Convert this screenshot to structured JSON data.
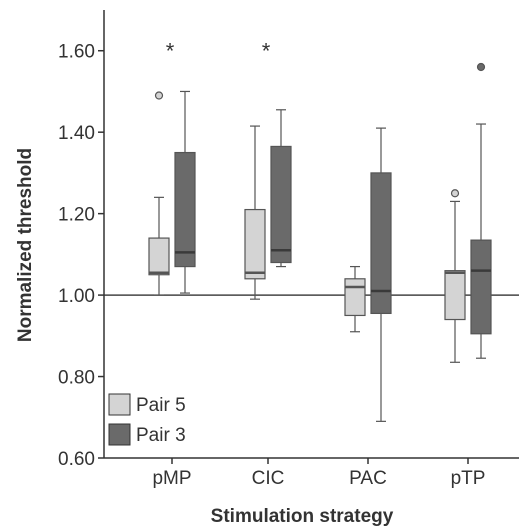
{
  "chart_data": {
    "type": "boxplot",
    "xlabel": "Stimulation strategy",
    "ylabel": "Normalized threshold",
    "ylim": [
      0.6,
      1.7
    ],
    "yticks": [
      "0.60",
      "0.80",
      "1.00",
      "1.20",
      "1.40",
      "1.60"
    ],
    "ytick_values": [
      0.6,
      0.8,
      1.0,
      1.2,
      1.4,
      1.6
    ],
    "reference_line": 1.0,
    "categories": [
      "pMP",
      "CIC",
      "PAC",
      "pTP"
    ],
    "legend_position": "bottom-left",
    "series": [
      {
        "name": "Pair 5",
        "color": "#d4d4d4",
        "boxes": [
          {
            "whisker_low": 1.0,
            "q1": 1.05,
            "median": 1.055,
            "q3": 1.14,
            "whisker_high": 1.24,
            "outliers": [
              1.49
            ]
          },
          {
            "whisker_low": 0.99,
            "q1": 1.04,
            "median": 1.055,
            "q3": 1.21,
            "whisker_high": 1.415,
            "outliers": []
          },
          {
            "whisker_low": 0.91,
            "q1": 0.95,
            "median": 1.02,
            "q3": 1.04,
            "whisker_high": 1.07,
            "outliers": []
          },
          {
            "whisker_low": 0.835,
            "q1": 0.94,
            "median": 1.055,
            "q3": 1.06,
            "whisker_high": 1.23,
            "outliers": [
              1.25
            ]
          }
        ]
      },
      {
        "name": "Pair 3",
        "color": "#6a6a6a",
        "boxes": [
          {
            "whisker_low": 1.005,
            "q1": 1.07,
            "median": 1.105,
            "q3": 1.35,
            "whisker_high": 1.5,
            "outliers": []
          },
          {
            "whisker_low": 1.07,
            "q1": 1.08,
            "median": 1.11,
            "q3": 1.365,
            "whisker_high": 1.455,
            "outliers": []
          },
          {
            "whisker_low": 0.69,
            "q1": 0.955,
            "median": 1.01,
            "q3": 1.3,
            "whisker_high": 1.41,
            "outliers": []
          },
          {
            "whisker_low": 0.845,
            "q1": 0.905,
            "median": 1.06,
            "q3": 1.135,
            "whisker_high": 1.42,
            "outliers": [
              1.56
            ]
          }
        ]
      }
    ],
    "annotations": [
      {
        "text": "*",
        "category": "pMP",
        "y": 1.615
      },
      {
        "text": "*",
        "category": "CIC",
        "y": 1.615
      }
    ]
  }
}
